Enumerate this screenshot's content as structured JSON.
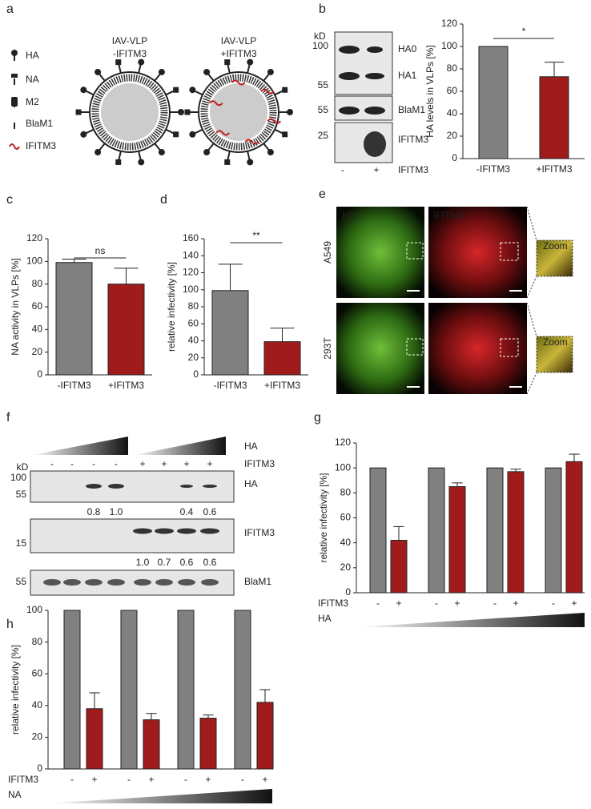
{
  "panel_labels": [
    "a",
    "b",
    "c",
    "d",
    "e",
    "f",
    "g",
    "h"
  ],
  "diagram": {
    "legend": [
      "HA",
      "NA",
      "M2",
      "BlaM1",
      "IFITM3"
    ],
    "virus_titles": [
      [
        "IAV-VLP",
        "-IFITM3"
      ],
      [
        "IAV-VLP",
        "+IFITM3"
      ]
    ]
  },
  "blot_b": {
    "unit": "kD",
    "markers": [
      "100",
      "55",
      "55",
      "25"
    ],
    "bands": [
      "HA0",
      "HA1",
      "BlaM1",
      "IFITM3"
    ],
    "lanes": [
      "-",
      "+"
    ],
    "lane_label": "IFITM3"
  },
  "microscopy": {
    "channels": [
      "HA",
      "IFITM3"
    ],
    "cell_lines": [
      "A549",
      "293T"
    ],
    "zoom": "Zoom"
  },
  "blot_f": {
    "gradient_label": "HA",
    "lanes": [
      "-",
      "-",
      "-",
      "-",
      "+",
      "+",
      "+",
      "+"
    ],
    "lane_label": "IFITM3",
    "unit": "kD",
    "markers": [
      "100",
      "55",
      "15",
      "55"
    ],
    "bands": [
      "HA",
      "IFITM3",
      "BlaM1"
    ],
    "ha_quant": [
      "0.8",
      "1.0",
      "0.4",
      "0.6"
    ],
    "ifitm3_quant": [
      "1.0",
      "0.7",
      "0.6",
      "0.6"
    ]
  },
  "chart_data": [
    {
      "type": "bar",
      "y_label": "HA levels in VLPs [%]",
      "categories": [
        "-IFITM3",
        "+IFITM3"
      ],
      "values": [
        100,
        73
      ],
      "errors": [
        0,
        13
      ],
      "colors": [
        "#808080",
        "#a01c1c"
      ],
      "ylim": [
        0,
        120
      ],
      "yticks": [
        0,
        20,
        40,
        60,
        80,
        100,
        120
      ],
      "significance": "*"
    },
    {
      "type": "bar",
      "y_label": "NA activity in VLPs [%]",
      "categories": [
        "-IFITM3",
        "+IFITM3"
      ],
      "values": [
        99,
        80
      ],
      "errors": [
        3,
        14
      ],
      "colors": [
        "#808080",
        "#a01c1c"
      ],
      "ylim": [
        0,
        120
      ],
      "yticks": [
        0,
        20,
        40,
        60,
        80,
        100,
        120
      ],
      "significance": "ns"
    },
    {
      "type": "bar",
      "y_label": "relative infectivity [%]",
      "categories": [
        "-IFITM3",
        "+IFITM3"
      ],
      "values": [
        99,
        39
      ],
      "errors": [
        31,
        16
      ],
      "colors": [
        "#808080",
        "#a01c1c"
      ],
      "ylim": [
        0,
        160
      ],
      "yticks": [
        0,
        20,
        40,
        60,
        80,
        100,
        120,
        140,
        160
      ],
      "significance": "**"
    },
    {
      "type": "bar",
      "y_label": "relative infectivity [%]",
      "categories": [
        "-",
        "+",
        "-",
        "+",
        "-",
        "+",
        "-",
        "+"
      ],
      "values": [
        100,
        42,
        100,
        85,
        100,
        97,
        100,
        105
      ],
      "errors": [
        0,
        11,
        0,
        3,
        0,
        2,
        0,
        6
      ],
      "colors": [
        "#808080",
        "#a01c1c",
        "#808080",
        "#a01c1c",
        "#808080",
        "#a01c1c",
        "#808080",
        "#a01c1c"
      ],
      "ylim": [
        0,
        120
      ],
      "yticks": [
        0,
        20,
        40,
        60,
        80,
        100,
        120
      ],
      "row_label": "IFITM3",
      "gradient_label": "HA"
    },
    {
      "type": "bar",
      "y_label": "relative infectivity [%]",
      "categories": [
        "-",
        "+",
        "-",
        "+",
        "-",
        "+",
        "-",
        "+"
      ],
      "values": [
        100,
        38,
        100,
        31,
        100,
        32,
        100,
        42
      ],
      "errors": [
        0,
        10,
        0,
        4,
        0,
        2,
        0,
        8
      ],
      "colors": [
        "#808080",
        "#a01c1c",
        "#808080",
        "#a01c1c",
        "#808080",
        "#a01c1c",
        "#808080",
        "#a01c1c"
      ],
      "ylim": [
        0,
        100
      ],
      "yticks": [
        0,
        20,
        40,
        60,
        80,
        100
      ],
      "row_label": "IFITM3",
      "gradient_label": "NA"
    }
  ]
}
